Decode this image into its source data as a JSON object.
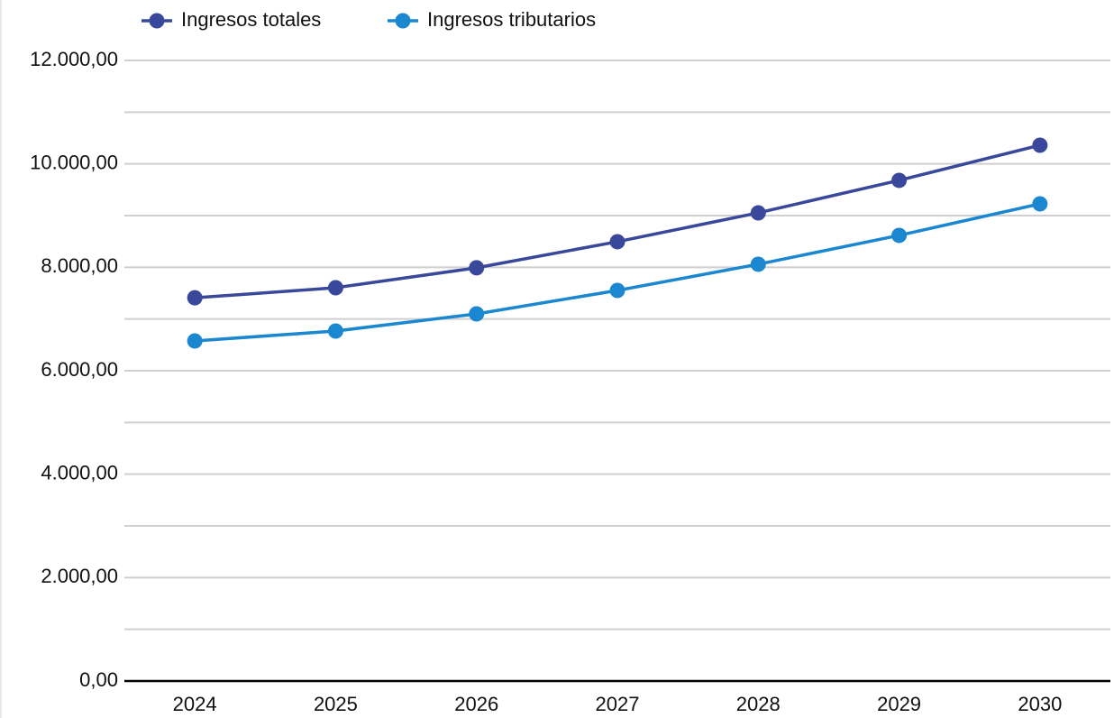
{
  "chart_data": {
    "type": "line",
    "categories": [
      "2024",
      "2025",
      "2026",
      "2027",
      "2028",
      "2029",
      "2030"
    ],
    "series": [
      {
        "name": "Ingresos totales",
        "color": "#39489a",
        "values": [
          7410,
          7605,
          7990,
          8495,
          9053,
          9681,
          10361
        ]
      },
      {
        "name": "Ingresos tributarios",
        "color": "#1a87d0",
        "values": [
          6576,
          6768,
          7099,
          7553,
          8059,
          8617,
          9227
        ]
      }
    ],
    "ylim": [
      0,
      12000
    ],
    "yticks": [
      {
        "value": 0,
        "label": "0,00"
      },
      {
        "value": 2000,
        "label": "2.000,00"
      },
      {
        "value": 4000,
        "label": "4.000,00"
      },
      {
        "value": 6000,
        "label": "6.000,00"
      },
      {
        "value": 8000,
        "label": "8.000,00"
      },
      {
        "value": 10000,
        "label": "10.000,00"
      },
      {
        "value": 12000,
        "label": "12.000,00"
      }
    ],
    "minor_yticks": [
      1000,
      3000,
      5000,
      7000,
      9000,
      11000
    ],
    "grid": true,
    "legend": "top"
  }
}
